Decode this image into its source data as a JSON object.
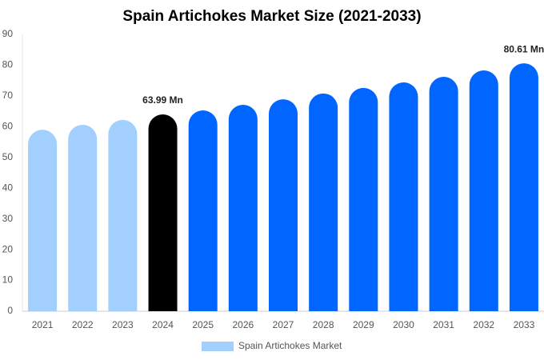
{
  "chart_data": {
    "type": "bar",
    "title": "Spain Artichokes Market Size (2021-2033)",
    "categories": [
      "2021",
      "2022",
      "2023",
      "2024",
      "2025",
      "2026",
      "2027",
      "2028",
      "2029",
      "2030",
      "2031",
      "2032",
      "2033"
    ],
    "series": [
      {
        "name": "Spain Artichokes Market",
        "color": "#a3cfff",
        "colors": [
          "#a3cfff",
          "#a3cfff",
          "#a3cfff",
          "#000000",
          "#0066ff",
          "#0066ff",
          "#0066ff",
          "#0066ff",
          "#0066ff",
          "#0066ff",
          "#0066ff",
          "#0066ff",
          "#0066ff"
        ],
        "values": [
          59.0,
          60.6,
          62.2,
          63.99,
          65.3,
          67.1,
          68.9,
          70.8,
          72.6,
          74.4,
          76.2,
          78.3,
          80.61
        ],
        "value_labels": [
          null,
          null,
          null,
          "63.99 Mn",
          null,
          null,
          null,
          null,
          null,
          null,
          null,
          null,
          "80.61 Mn"
        ]
      }
    ],
    "ylim": [
      0,
      90
    ],
    "yticks": [
      0,
      10,
      20,
      30,
      40,
      50,
      60,
      70,
      80,
      90
    ],
    "grid": false,
    "legend": "bottom"
  }
}
